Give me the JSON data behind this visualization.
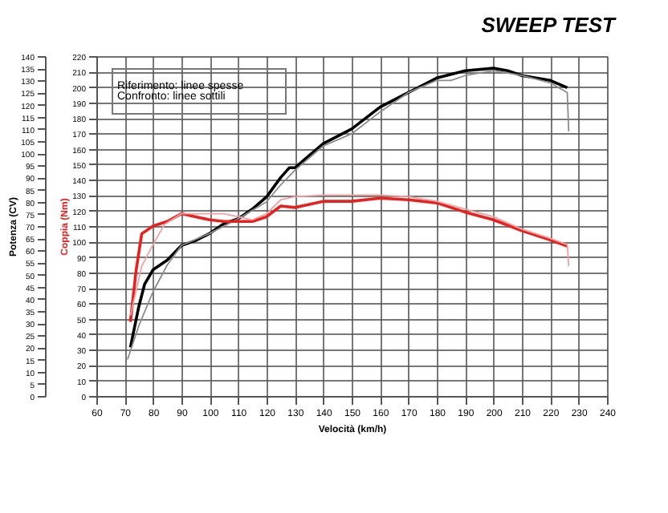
{
  "chart_data": {
    "type": "line",
    "title": "SWEEP TEST",
    "xlabel": "Velocità (km/h)",
    "ylabel": "Potenza (CV)",
    "y2label": "Coppia (Nm)",
    "xlim": [
      60,
      240
    ],
    "xticks": [
      60,
      70,
      80,
      90,
      100,
      110,
      120,
      130,
      140,
      150,
      160,
      170,
      180,
      190,
      200,
      210,
      220,
      230,
      240
    ],
    "ylim": [
      0,
      140
    ],
    "yticks": [
      0,
      5,
      10,
      15,
      20,
      25,
      30,
      35,
      40,
      45,
      50,
      55,
      60,
      65,
      70,
      75,
      80,
      85,
      90,
      95,
      100,
      105,
      110,
      115,
      120,
      125,
      130,
      135,
      140
    ],
    "y2lim": [
      0,
      220
    ],
    "y2ticks": [
      0,
      10,
      20,
      30,
      40,
      50,
      60,
      70,
      80,
      90,
      100,
      110,
      120,
      130,
      140,
      150,
      160,
      170,
      180,
      190,
      200,
      210,
      220
    ],
    "grid": true,
    "legend": false,
    "marker": "none",
    "line_style": "solid",
    "annotations": [
      "Riferimento: linee spesse",
      "Confronto: linee sottili"
    ],
    "series": [
      {
        "color": "#000000",
        "x": [
          72,
          75,
          77,
          80,
          85,
          90,
          95,
          100,
          105,
          110,
          115,
          120,
          125,
          128,
          130,
          135,
          140,
          150,
          160,
          170,
          180,
          190,
          200,
          205,
          210,
          220,
          226
        ],
        "values": [
          20,
          37,
          46,
          52,
          56,
          62,
          64,
          67,
          71,
          73,
          77,
          82,
          90,
          94,
          94,
          99,
          104,
          110,
          119,
          125,
          131,
          134,
          135,
          134,
          132,
          130,
          127
        ]
      },
      {
        "color": "#8c8c8c",
        "x": [
          71,
          75,
          80,
          85,
          90,
          100,
          110,
          120,
          125,
          130,
          140,
          150,
          160,
          170,
          180,
          185,
          190,
          200,
          210,
          220,
          226,
          226.5
        ],
        "values": [
          15,
          29,
          43,
          54,
          62,
          67,
          73,
          80,
          87,
          93,
          103,
          108,
          117,
          125,
          130,
          130,
          132,
          134,
          132,
          129,
          125,
          109
        ]
      },
      {
        "color": "#e8201e",
        "axis": "y2",
        "x": [
          72,
          74,
          76,
          80,
          85,
          90,
          95,
          100,
          105,
          110,
          115,
          120,
          125,
          130,
          140,
          150,
          160,
          170,
          180,
          190,
          200,
          210,
          220,
          226
        ],
        "values": [
          48,
          81,
          105,
          110,
          113,
          118,
          116,
          114,
          113,
          113,
          113,
          116,
          123,
          122,
          126,
          126,
          128,
          127,
          125,
          119,
          114,
          107,
          101,
          97
        ]
      },
      {
        "color": "#f2a0a0",
        "axis": "y2",
        "x": [
          72,
          76,
          80,
          84,
          90,
          100,
          105,
          110,
          115,
          120,
          125,
          130,
          140,
          150,
          160,
          170,
          180,
          190,
          200,
          210,
          220,
          226,
          226.5
        ],
        "values": [
          52,
          84,
          98,
          111,
          118,
          118,
          118,
          116,
          114,
          118,
          127,
          129,
          130,
          130,
          130,
          129,
          126,
          121,
          116,
          108,
          102,
          98,
          84
        ]
      }
    ]
  }
}
